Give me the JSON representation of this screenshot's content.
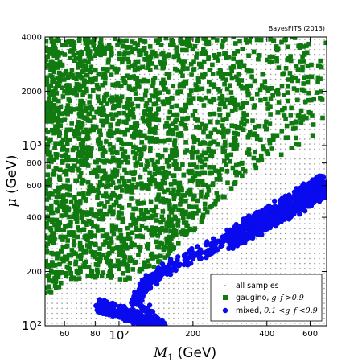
{
  "credit": "BayesFITS (2013)",
  "chart_data": {
    "type": "scatter",
    "xlabel": "M1 (GeV)",
    "ylabel": "μ (GeV)",
    "xscale": "log",
    "yscale": "log",
    "xlim": [
      50,
      700
    ],
    "ylim": [
      100,
      4000
    ],
    "x_ticks": [
      {
        "value": 60,
        "label": "60",
        "major": false
      },
      {
        "value": 80,
        "label": "80",
        "major": false
      },
      {
        "value": 100,
        "label": "10²",
        "major": true
      },
      {
        "value": 200,
        "label": "200",
        "major": false
      },
      {
        "value": 400,
        "label": "400",
        "major": false
      },
      {
        "value": 600,
        "label": "600",
        "major": false
      }
    ],
    "y_ticks": [
      {
        "value": 100,
        "label": "10²",
        "major": true
      },
      {
        "value": 200,
        "label": "200",
        "major": false
      },
      {
        "value": 400,
        "label": "400",
        "major": false
      },
      {
        "value": 600,
        "label": "600",
        "major": false
      },
      {
        "value": 800,
        "label": "800",
        "major": false
      },
      {
        "value": 1000,
        "label": "10³",
        "major": true
      },
      {
        "value": 2000,
        "label": "2000",
        "major": false
      },
      {
        "value": 4000,
        "label": "4000",
        "major": false
      }
    ],
    "legend_position": "lower-right",
    "series": [
      {
        "name": "all samples",
        "marker": "dot",
        "color": "#9a9a9a",
        "description": "uniform grid of small grey points covering the full plane"
      },
      {
        "name": "gaugino, g_f > 0.9",
        "legend_label": "gaugino,",
        "legend_math": "g_f >0.9",
        "marker": "square",
        "color": "#107a10",
        "region_upper_left": [
          [
            50,
            4000
          ],
          [
            700,
            4000
          ],
          [
            700,
            1200
          ],
          [
            330,
            700
          ],
          [
            200,
            330
          ],
          [
            140,
            210
          ],
          [
            110,
            180
          ],
          [
            80,
            185
          ],
          [
            60,
            180
          ],
          [
            55,
            150
          ],
          [
            50,
            150
          ]
        ]
      },
      {
        "name": "mixed, 0.1 < g_f < 0.9",
        "legend_label": "mixed,",
        "legend_math": "0.1 <g_f <0.9",
        "marker": "circle",
        "color": "#0a0aee",
        "band_points": [
          [
            82,
            130
          ],
          [
            90,
            125
          ],
          [
            100,
            120
          ],
          [
            110,
            115
          ],
          [
            120,
            110
          ],
          [
            130,
            106
          ],
          [
            140,
            103
          ],
          [
            150,
            101
          ],
          [
            116,
            140
          ],
          [
            125,
            160
          ],
          [
            135,
            180
          ],
          [
            150,
            200
          ],
          [
            170,
            220
          ],
          [
            200,
            245
          ],
          [
            240,
            275
          ],
          [
            280,
            310
          ],
          [
            320,
            350
          ],
          [
            360,
            390
          ],
          [
            400,
            420
          ],
          [
            450,
            460
          ],
          [
            500,
            500
          ],
          [
            550,
            540
          ],
          [
            600,
            580
          ],
          [
            650,
            620
          ],
          [
            690,
            650
          ]
        ],
        "band_lower_branch": [
          [
            280,
            280
          ],
          [
            350,
            330
          ],
          [
            420,
            380
          ],
          [
            500,
            430
          ],
          [
            600,
            500
          ],
          [
            690,
            560
          ]
        ],
        "band_width_dex": 0.07
      }
    ]
  }
}
